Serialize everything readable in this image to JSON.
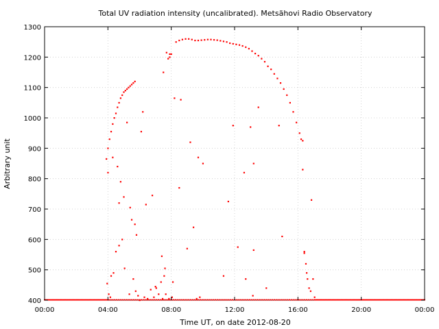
{
  "chart_data": {
    "type": "scatter",
    "title": "Total UV radiation intensity (uncalibrated). Metsähovi Radio Observatory",
    "xlabel": "Time UT, on date 2012-08-20",
    "ylabel": "Arbitrary unit",
    "xlim": [
      0,
      24
    ],
    "ylim": [
      400,
      1300
    ],
    "x_ticks": [
      "00:00",
      "04:00",
      "08:00",
      "12:00",
      "16:00",
      "20:00",
      "00:00"
    ],
    "y_ticks": [
      400,
      500,
      600,
      700,
      800,
      900,
      1000,
      1100,
      1200,
      1300
    ],
    "grid": true,
    "series": [
      {
        "color": "#ff0000",
        "x": [
          3.9,
          4.0,
          4.1,
          4.2,
          4.3,
          4.4,
          4.5,
          4.6,
          4.7,
          4.8,
          4.9,
          5.0,
          5.1,
          5.2,
          5.3,
          5.4,
          5.5,
          5.6,
          5.7,
          7.8,
          7.9,
          8.0,
          8.3,
          8.5,
          8.7,
          8.9,
          9.1,
          9.3,
          9.5,
          9.7,
          9.9,
          10.1,
          10.3,
          10.5,
          10.7,
          10.9,
          11.1,
          11.3,
          11.5,
          11.7,
          11.9,
          12.1,
          12.3,
          12.5,
          12.7,
          12.9,
          13.1,
          13.3,
          13.5,
          13.7,
          13.9,
          14.1,
          14.3,
          14.5,
          14.7,
          14.9,
          15.1,
          15.3,
          15.5,
          15.7,
          15.9,
          16.1,
          16.2,
          16.3,
          4.0,
          4.3,
          4.6,
          4.8,
          5.0,
          5.4,
          5.7,
          6.2,
          7.5,
          7.7,
          7.9,
          8.2,
          8.6,
          9.2,
          9.7,
          10.0,
          11.6,
          11.9,
          12.6,
          13.0,
          13.2,
          13.5,
          14.8,
          16.3,
          4.2,
          4.5,
          4.7,
          4.9,
          5.2,
          5.5,
          5.8,
          6.1,
          6.4,
          6.8,
          7.0,
          7.4,
          7.6,
          8.1,
          8.5,
          9.0,
          9.4,
          9.8,
          11.3,
          12.2,
          13.2,
          14.0,
          15.0,
          16.4,
          16.5,
          16.6,
          16.8,
          3.95,
          4.05,
          4.15,
          4.35,
          4.7,
          5.05,
          5.35,
          5.6,
          5.75,
          5.9,
          6.0,
          6.3,
          6.5,
          6.7,
          6.9,
          7.05,
          7.2,
          7.35,
          7.45,
          7.55,
          7.65,
          7.85,
          8.05,
          9.6,
          12.7,
          13.15,
          16.4,
          16.55,
          16.7,
          16.85,
          16.95,
          17.05
        ],
        "y": [
          865,
          900,
          930,
          955,
          980,
          1000,
          1015,
          1035,
          1050,
          1065,
          1075,
          1085,
          1090,
          1095,
          1100,
          1105,
          1110,
          1115,
          1120,
          1195,
          1200,
          1210,
          1250,
          1255,
          1258,
          1260,
          1260,
          1258,
          1255,
          1255,
          1256,
          1257,
          1258,
          1258,
          1257,
          1256,
          1254,
          1252,
          1250,
          1246,
          1244,
          1242,
          1240,
          1237,
          1233,
          1228,
          1220,
          1212,
          1205,
          1195,
          1185,
          1170,
          1160,
          1145,
          1130,
          1115,
          1095,
          1075,
          1050,
          1020,
          985,
          950,
          930,
          925,
          820,
          870,
          840,
          790,
          740,
          705,
          650,
          1020,
          1150,
          1215,
          1210,
          1065,
          1060,
          920,
          870,
          850,
          725,
          975,
          820,
          970,
          850,
          1035,
          975,
          830,
          480,
          560,
          720,
          600,
          985,
          665,
          615,
          955,
          715,
          745,
          445,
          545,
          505,
          460,
          770,
          570,
          640,
          410,
          480,
          575,
          565,
          440,
          610,
          560,
          520,
          470,
          430,
          455,
          420,
          410,
          490,
          580,
          505,
          420,
          470,
          430,
          415,
          400,
          410,
          405,
          435,
          410,
          440,
          420,
          460,
          405,
          480,
          420,
          405,
          410,
          405,
          470,
          415,
          555,
          490,
          440,
          730,
          470,
          410
        ]
      }
    ]
  }
}
